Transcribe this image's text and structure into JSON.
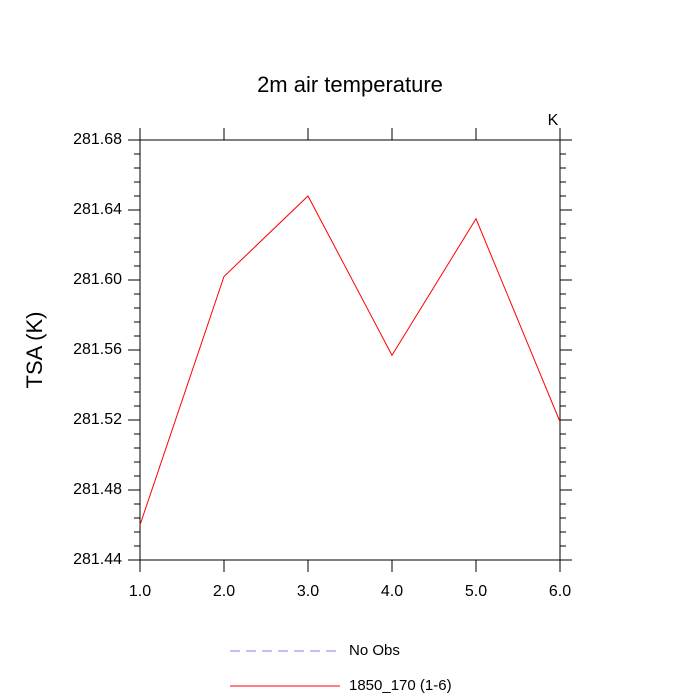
{
  "chart_data": {
    "type": "line",
    "title": "2m air temperature",
    "y_label": "TSA  (K)",
    "units_label": "K",
    "x": [
      1,
      2,
      3,
      4,
      5,
      6
    ],
    "series": [
      {
        "name": "No Obs",
        "color": "#8080ff",
        "dashed": true,
        "values": [
          null,
          null,
          null,
          null,
          null,
          null
        ]
      },
      {
        "name": "1850_170 (1-6)",
        "color": "#ff0000",
        "dashed": false,
        "values": [
          281.46,
          281.602,
          281.648,
          281.557,
          281.635,
          281.519
        ]
      }
    ],
    "xlim": [
      1,
      6
    ],
    "xticks": [
      {
        "value": 1,
        "label": "1.0"
      },
      {
        "value": 2,
        "label": "2.0"
      },
      {
        "value": 3,
        "label": "3.0"
      },
      {
        "value": 4,
        "label": "4.0"
      },
      {
        "value": 5,
        "label": "5.0"
      },
      {
        "value": 6,
        "label": "6.0"
      }
    ],
    "ylim": [
      281.44,
      281.68
    ],
    "yticks": [
      281.44,
      281.48,
      281.52,
      281.56,
      {
        "value": 281.6,
        "label": "281.60"
      },
      281.64,
      281.68
    ],
    "grid": false
  }
}
